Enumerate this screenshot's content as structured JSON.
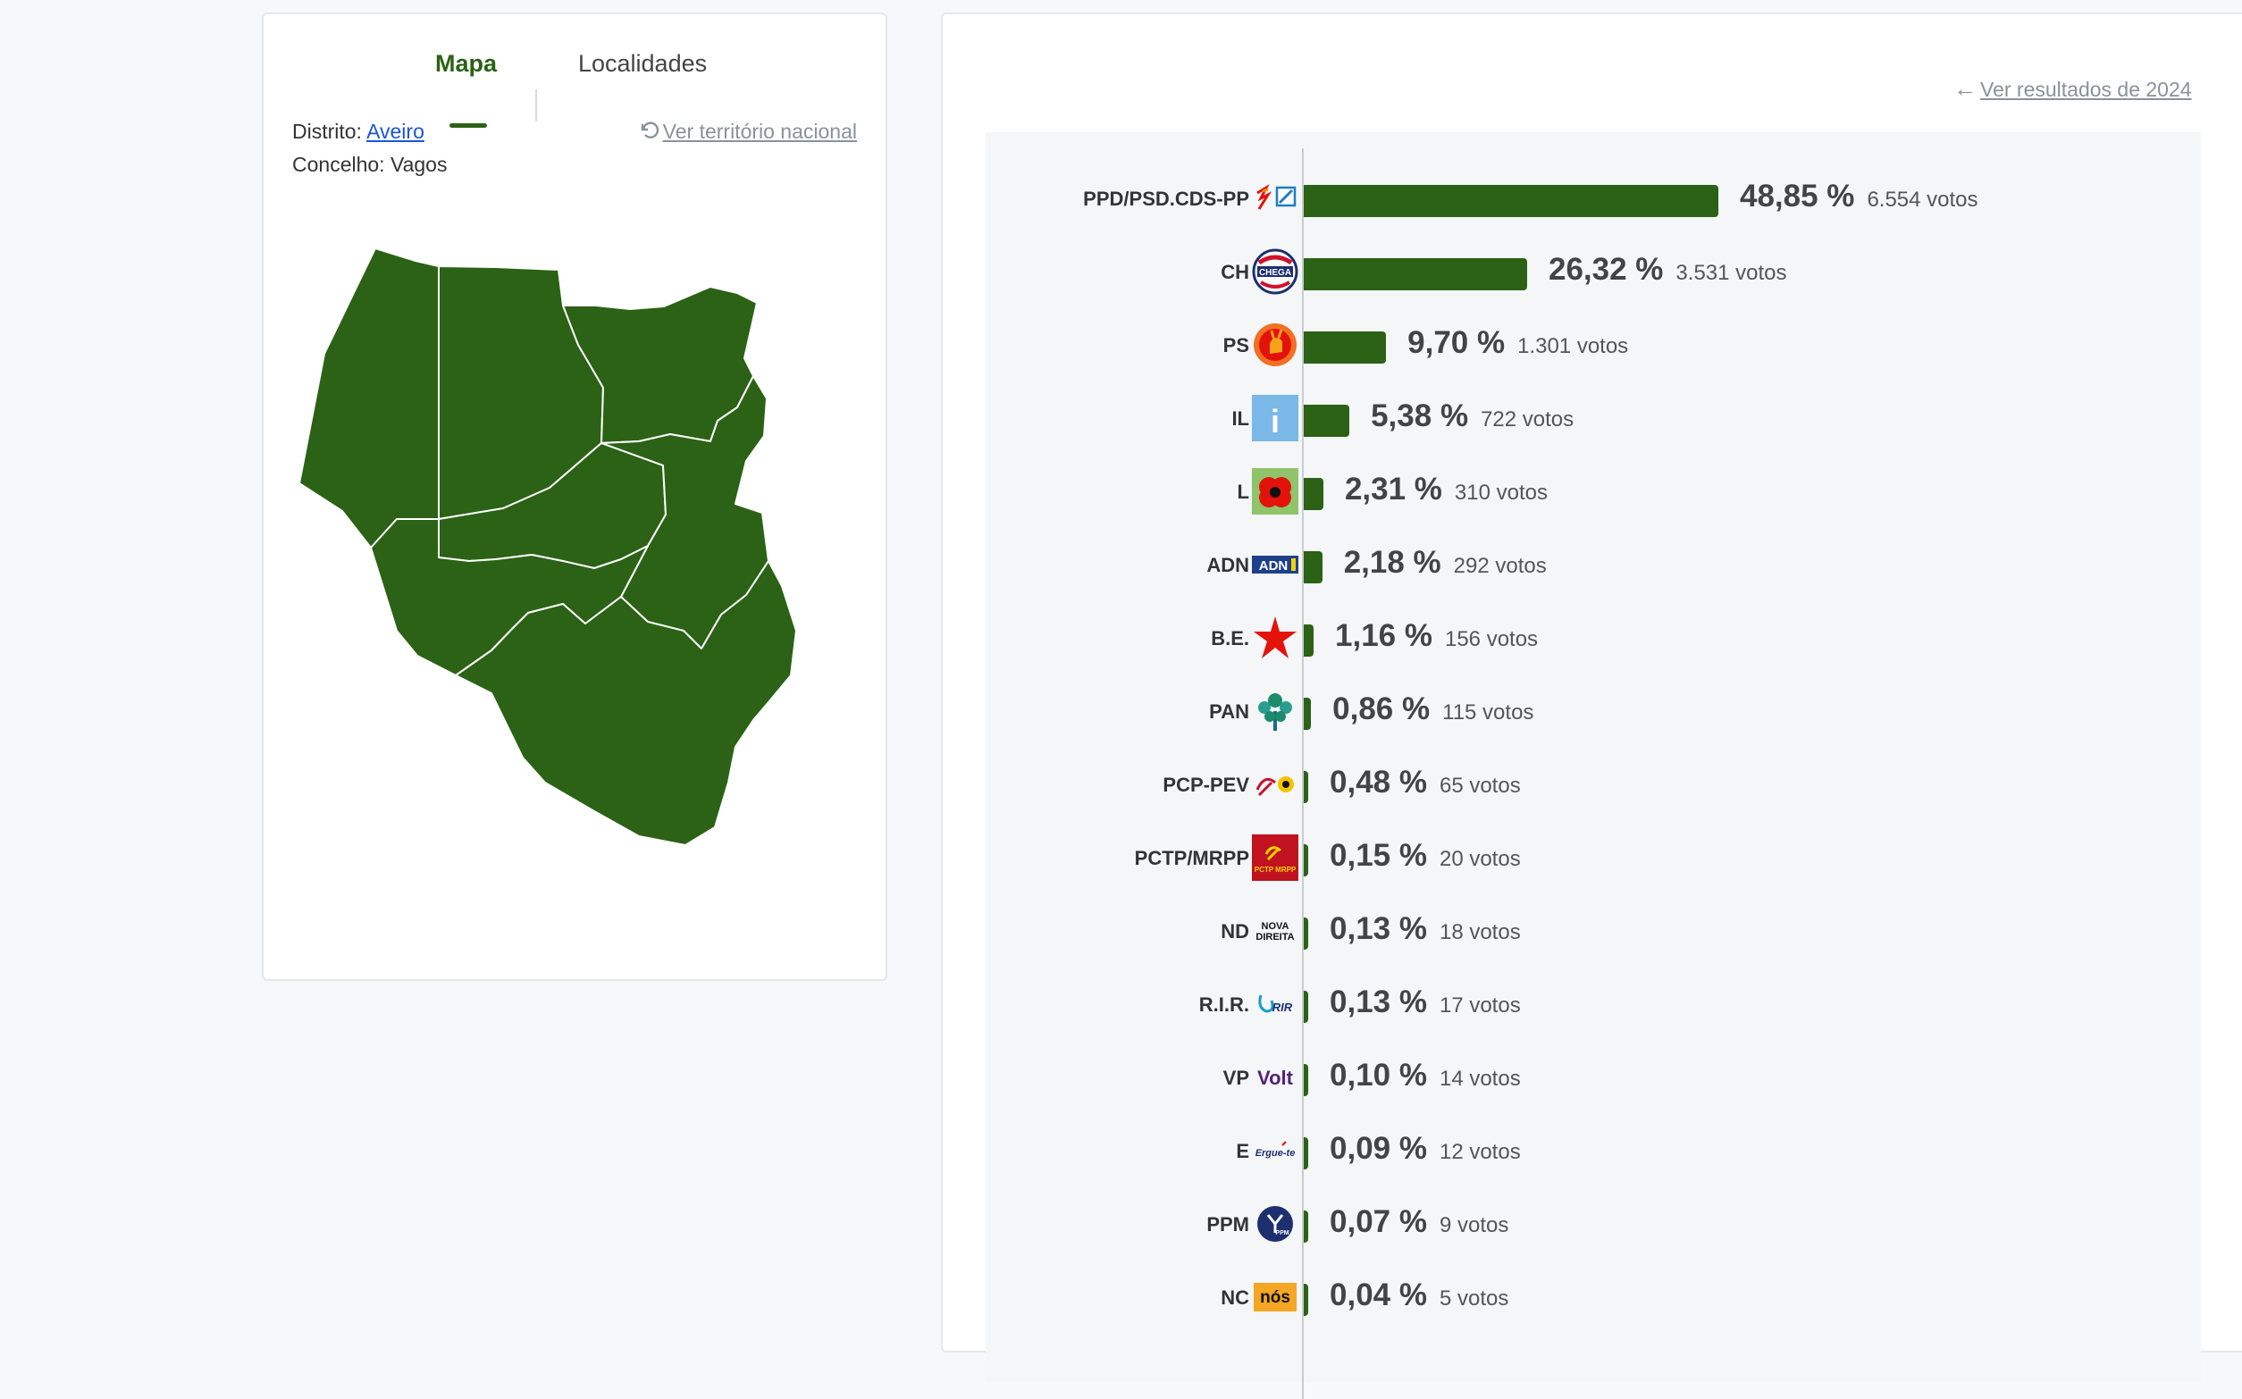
{
  "map_panel": {
    "tabs": [
      {
        "label": "Mapa",
        "active": true
      },
      {
        "label": "Localidades",
        "active": false
      }
    ],
    "distrito_label": "Distrito:",
    "distrito_value": "Aveiro",
    "concelho_label": "Concelho:",
    "concelho_value": "Vagos",
    "national_link": "Ver território nacional",
    "map_color": "#2b6215"
  },
  "results_panel": {
    "back_link": "Ver resultados de 2024",
    "bar_color": "#2b6215"
  },
  "chart_data": {
    "type": "bar",
    "orientation": "horizontal",
    "xlim": [
      0,
      48.85
    ],
    "categories": [
      "PPD/PSD.CDS-PP",
      "CH",
      "PS",
      "IL",
      "L",
      "ADN",
      "B.E.",
      "PAN",
      "PCP-PEV",
      "PCTP/MRPP",
      "ND",
      "R.I.R.",
      "VP",
      "E",
      "PPM",
      "NC"
    ],
    "values": [
      48.85,
      26.32,
      9.7,
      5.38,
      2.31,
      2.18,
      1.16,
      0.86,
      0.48,
      0.15,
      0.13,
      0.13,
      0.1,
      0.09,
      0.07,
      0.04
    ],
    "pct_labels": [
      "48,85 %",
      "26,32 %",
      "9,70 %",
      "5,38 %",
      "2,31 %",
      "2,18 %",
      "1,16 %",
      "0,86 %",
      "0,48 %",
      "0,15 %",
      "0,13 %",
      "0,13 %",
      "0,10 %",
      "0,09 %",
      "0,07 %",
      "0,04 %"
    ],
    "vote_labels": [
      "6.554 votos",
      "3.531 votos",
      "1.301 votos",
      "722 votos",
      "310 votos",
      "292 votos",
      "156 votos",
      "115 votos",
      "65 votos",
      "20 votos",
      "18 votos",
      "17 votos",
      "14 votos",
      "12 votos",
      "9 votos",
      "5 votos"
    ],
    "logos": [
      {
        "icon": "psd-cds-logo-icon",
        "text": ""
      },
      {
        "icon": "chega-logo-icon",
        "text": "CHEGA"
      },
      {
        "icon": "ps-fist-logo-icon",
        "text": ""
      },
      {
        "icon": "il-logo-icon",
        "text": "i"
      },
      {
        "icon": "livre-poppy-logo-icon",
        "text": ""
      },
      {
        "icon": "adn-logo-icon",
        "text": "ADN"
      },
      {
        "icon": "be-star-logo-icon",
        "text": ""
      },
      {
        "icon": "pan-tree-logo-icon",
        "text": ""
      },
      {
        "icon": "pcp-pev-logo-icon",
        "text": ""
      },
      {
        "icon": "pctp-mrpp-logo-icon",
        "text": "PCTP MRPP"
      },
      {
        "icon": "nova-direita-logo-icon",
        "text": "NOVA DIREITA"
      },
      {
        "icon": "rir-logo-icon",
        "text": "RIR"
      },
      {
        "icon": "volt-logo-icon",
        "text": "Volt"
      },
      {
        "icon": "ergue-te-logo-icon",
        "text": "Ergue-te"
      },
      {
        "icon": "ppm-logo-icon",
        "text": "PPM"
      },
      {
        "icon": "nos-cidadaos-logo-icon",
        "text": "nós"
      }
    ]
  }
}
